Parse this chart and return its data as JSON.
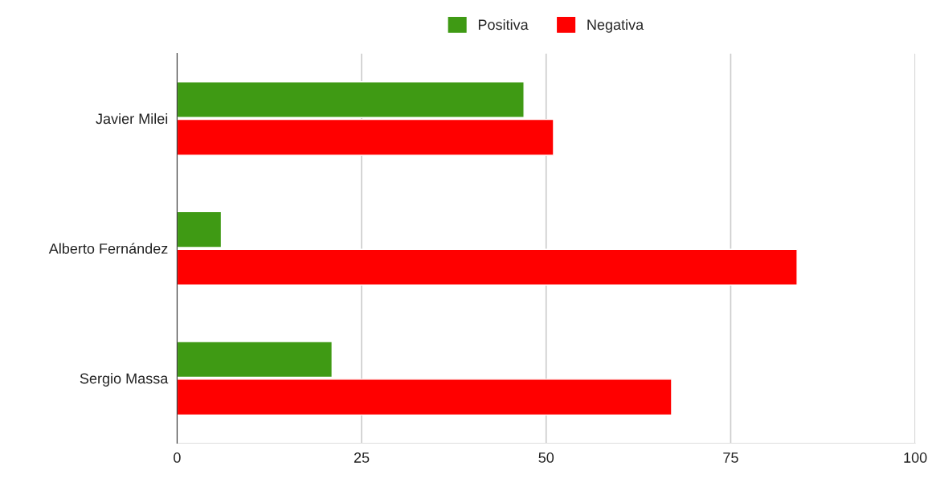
{
  "chart_data": {
    "type": "bar",
    "orientation": "horizontal",
    "categories": [
      "Javier Milei",
      "Alberto Fernández",
      "Sergio Massa"
    ],
    "series": [
      {
        "name": "Positiva",
        "color": "#3f9a14",
        "values": [
          47,
          6,
          21
        ]
      },
      {
        "name": "Negativa",
        "color": "#ff0000",
        "values": [
          51,
          84,
          67
        ]
      }
    ],
    "xlim": [
      0,
      100
    ],
    "xticks": [
      0,
      25,
      50,
      75,
      100
    ],
    "grid": "x",
    "legend": "top"
  }
}
